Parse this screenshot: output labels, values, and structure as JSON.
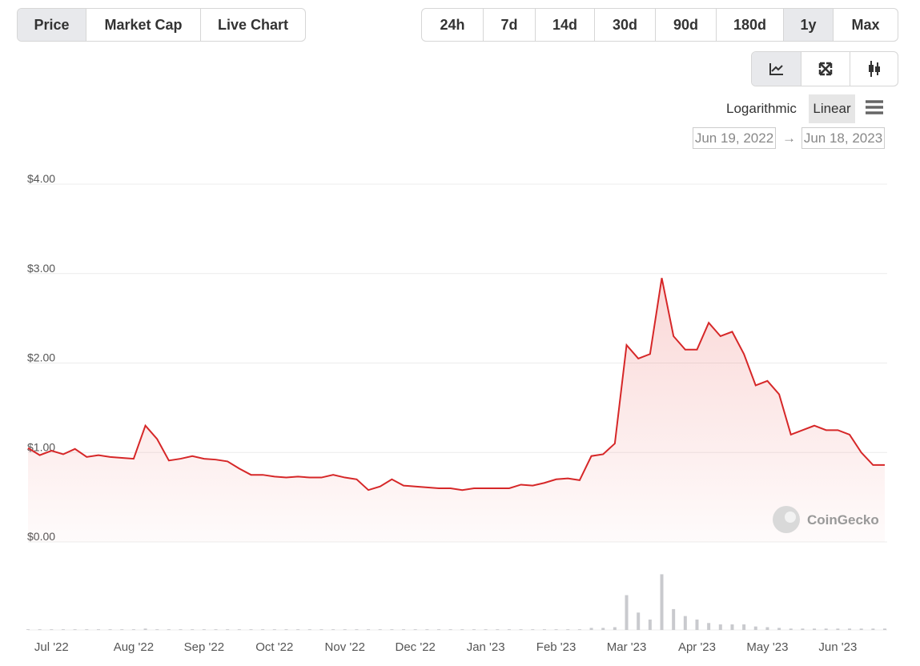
{
  "tabs": [
    "Price",
    "Market Cap",
    "Live Chart"
  ],
  "ranges": [
    "24h",
    "7d",
    "14d",
    "30d",
    "90d",
    "180d",
    "1y",
    "Max"
  ],
  "scale_options": [
    "Logarithmic",
    "Linear"
  ],
  "date_from": "Jun 19, 2022",
  "date_separator": "→",
  "date_to": "Jun 18, 2023",
  "watermark": "CoinGecko",
  "chart_data": {
    "type": "line",
    "color": "#d62728",
    "categories": [
      null,
      null,
      "Jul '22",
      null,
      null,
      null,
      null,
      null,
      null,
      "Aug '22",
      null,
      null,
      null,
      null,
      null,
      "Sep '22",
      null,
      null,
      null,
      null,
      null,
      "Oct '22",
      null,
      null,
      null,
      null,
      null,
      "Nov '22",
      null,
      null,
      null,
      null,
      null,
      "Dec '22",
      null,
      null,
      null,
      null,
      null,
      "Jan '23",
      null,
      null,
      null,
      null,
      null,
      "Feb '23",
      null,
      null,
      null,
      null,
      null,
      "Mar '23",
      null,
      null,
      null,
      null,
      null,
      "Apr '23",
      null,
      null,
      null,
      null,
      null,
      "May '23",
      null,
      null,
      null,
      null,
      null,
      "Jun '23",
      null,
      null,
      null,
      null
    ],
    "values": [
      1.05,
      0.97,
      1.02,
      0.98,
      1.04,
      0.95,
      0.97,
      0.95,
      0.94,
      0.93,
      1.3,
      1.15,
      0.91,
      0.93,
      0.96,
      0.93,
      0.92,
      0.9,
      0.82,
      0.75,
      0.75,
      0.73,
      0.72,
      0.73,
      0.72,
      0.72,
      0.75,
      0.72,
      0.7,
      0.58,
      0.62,
      0.7,
      0.63,
      0.62,
      0.61,
      0.6,
      0.6,
      0.58,
      0.6,
      0.6,
      0.6,
      0.6,
      0.64,
      0.63,
      0.66,
      0.7,
      0.71,
      0.69,
      0.96,
      0.98,
      1.1,
      2.2,
      2.05,
      2.1,
      2.95,
      2.3,
      2.15,
      2.15,
      2.45,
      2.3,
      2.35,
      2.1,
      1.75,
      1.8,
      1.65,
      1.2,
      1.25,
      1.3,
      1.25,
      1.25,
      1.2,
      1.0,
      0.86,
      0.86
    ],
    "ylim": [
      0,
      4
    ],
    "yticks": [
      {
        "value": 0,
        "label": "$0.00"
      },
      {
        "value": 1,
        "label": "$1.00"
      },
      {
        "value": 2,
        "label": "$2.00"
      },
      {
        "value": 3,
        "label": "$3.00"
      },
      {
        "value": 4,
        "label": "$4.00"
      }
    ],
    "grid": true,
    "volume": [
      1,
      1,
      1,
      1,
      1,
      1,
      1,
      1,
      1,
      1,
      2,
      1,
      1,
      1,
      1,
      1,
      1,
      1,
      1,
      1,
      1,
      1,
      1,
      1,
      1,
      1,
      1,
      1,
      1,
      1,
      1,
      1,
      1,
      1,
      1,
      1,
      1,
      1,
      1,
      1,
      1,
      1,
      1,
      1,
      1,
      1,
      1,
      1,
      3,
      3,
      4,
      50,
      25,
      15,
      80,
      30,
      20,
      15,
      10,
      8,
      8,
      8,
      5,
      4,
      3,
      2,
      2,
      2,
      2,
      2,
      2,
      2,
      2,
      2
    ],
    "volume_color": "#c9cace",
    "volume_ylim": [
      0,
      100
    ]
  }
}
